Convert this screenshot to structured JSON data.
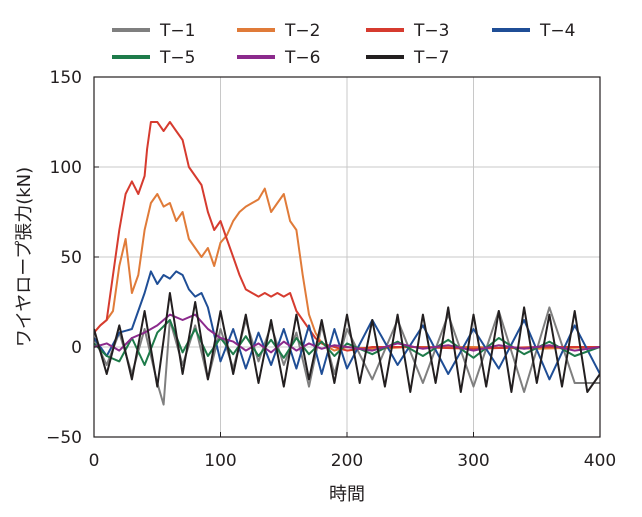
{
  "chart_data": {
    "type": "line",
    "title": "",
    "xlabel": "時間",
    "ylabel": "ワイヤロープ張力(kN)",
    "xlim": [
      0,
      400
    ],
    "ylim": [
      -50,
      150
    ],
    "xticks": [
      0,
      100,
      200,
      300,
      400
    ],
    "yticks": [
      -50,
      0,
      50,
      100,
      150
    ],
    "xtick_labels": [
      "0",
      "100",
      "200",
      "300",
      "400"
    ],
    "ytick_labels": [
      "−50",
      "0",
      "50",
      "100",
      "150"
    ],
    "grid": true,
    "legend_position": "top",
    "series": [
      {
        "name": "T−1",
        "color": "#7f7f7f",
        "x": [
          0,
          10,
          20,
          30,
          40,
          50,
          55,
          60,
          70,
          80,
          90,
          100,
          110,
          120,
          130,
          140,
          150,
          160,
          170,
          180,
          190,
          200,
          220,
          240,
          260,
          280,
          300,
          320,
          340,
          360,
          380,
          400
        ],
        "y": [
          5,
          -10,
          8,
          -15,
          10,
          -20,
          -32,
          15,
          -10,
          12,
          -18,
          10,
          -12,
          15,
          -8,
          12,
          -10,
          8,
          -22,
          12,
          -15,
          10,
          -18,
          15,
          -20,
          18,
          -22,
          20,
          -25,
          22,
          -20,
          -20
        ]
      },
      {
        "name": "T−2",
        "color": "#e07b39",
        "x": [
          0,
          5,
          10,
          15,
          20,
          25,
          30,
          35,
          40,
          45,
          50,
          55,
          60,
          65,
          70,
          75,
          80,
          85,
          90,
          95,
          100,
          105,
          110,
          115,
          120,
          125,
          130,
          135,
          140,
          145,
          150,
          155,
          160,
          165,
          170,
          175,
          180,
          190,
          200,
          220,
          250,
          300,
          350,
          400
        ],
        "y": [
          8,
          12,
          15,
          20,
          45,
          60,
          30,
          40,
          65,
          80,
          85,
          78,
          80,
          70,
          75,
          60,
          55,
          50,
          55,
          45,
          58,
          62,
          70,
          75,
          78,
          80,
          82,
          88,
          75,
          80,
          85,
          70,
          65,
          40,
          18,
          8,
          2,
          -2,
          0,
          -1,
          0,
          0,
          -1,
          0
        ]
      },
      {
        "name": "T−3",
        "color": "#d63b2f",
        "x": [
          0,
          5,
          10,
          15,
          20,
          25,
          30,
          35,
          40,
          42,
          45,
          50,
          55,
          60,
          65,
          70,
          75,
          80,
          85,
          90,
          95,
          100,
          105,
          110,
          115,
          120,
          125,
          130,
          135,
          140,
          145,
          150,
          155,
          160,
          165,
          170,
          175,
          180,
          190,
          200,
          220,
          250,
          300,
          350,
          400
        ],
        "y": [
          8,
          12,
          15,
          40,
          65,
          85,
          92,
          85,
          95,
          110,
          125,
          125,
          120,
          125,
          120,
          115,
          100,
          95,
          90,
          75,
          65,
          70,
          60,
          50,
          40,
          32,
          30,
          28,
          30,
          28,
          30,
          28,
          30,
          20,
          15,
          10,
          5,
          2,
          0,
          -2,
          0,
          0,
          -1,
          0,
          0
        ]
      },
      {
        "name": "T−4",
        "color": "#1f4e96",
        "x": [
          0,
          10,
          20,
          30,
          40,
          45,
          50,
          55,
          60,
          65,
          70,
          75,
          80,
          85,
          90,
          100,
          110,
          120,
          130,
          140,
          150,
          160,
          170,
          180,
          190,
          200,
          220,
          240,
          260,
          280,
          300,
          320,
          340,
          360,
          380,
          400
        ],
        "y": [
          5,
          -5,
          8,
          10,
          30,
          42,
          35,
          40,
          38,
          42,
          40,
          32,
          28,
          30,
          22,
          -8,
          10,
          -12,
          8,
          -10,
          10,
          -12,
          12,
          -15,
          10,
          -12,
          15,
          -10,
          12,
          -15,
          10,
          -12,
          15,
          -18,
          12,
          -15
        ]
      },
      {
        "name": "T−5",
        "color": "#1e7b4a",
        "x": [
          0,
          10,
          20,
          30,
          40,
          50,
          60,
          70,
          80,
          90,
          100,
          110,
          120,
          130,
          140,
          150,
          160,
          170,
          180,
          190,
          200,
          220,
          240,
          260,
          280,
          300,
          320,
          340,
          360,
          380,
          400
        ],
        "y": [
          2,
          -5,
          -8,
          5,
          -10,
          8,
          15,
          -3,
          10,
          -5,
          5,
          -4,
          6,
          -5,
          4,
          -6,
          5,
          -4,
          3,
          -5,
          2,
          -4,
          3,
          -5,
          4,
          -6,
          5,
          -4,
          3,
          -5,
          0
        ]
      },
      {
        "name": "T−6",
        "color": "#8b2a8c",
        "x": [
          0,
          10,
          20,
          30,
          40,
          50,
          60,
          70,
          80,
          90,
          100,
          110,
          120,
          130,
          140,
          150,
          160,
          170,
          180,
          190,
          200,
          220,
          240,
          260,
          280,
          300,
          320,
          340,
          360,
          380,
          400
        ],
        "y": [
          0,
          2,
          -2,
          5,
          8,
          12,
          18,
          15,
          18,
          10,
          5,
          3,
          -2,
          2,
          -3,
          3,
          -2,
          2,
          -1,
          1,
          0,
          -2,
          2,
          -1,
          1,
          -2,
          1,
          -1,
          1,
          -2,
          0
        ]
      },
      {
        "name": "T−7",
        "color": "#231f20",
        "x": [
          0,
          10,
          20,
          30,
          40,
          50,
          60,
          70,
          80,
          90,
          100,
          110,
          120,
          130,
          140,
          150,
          160,
          170,
          180,
          190,
          200,
          210,
          220,
          230,
          240,
          250,
          260,
          270,
          280,
          290,
          300,
          310,
          320,
          330,
          340,
          350,
          360,
          370,
          380,
          390,
          400
        ],
        "y": [
          10,
          -15,
          12,
          -18,
          20,
          -22,
          30,
          -15,
          25,
          -18,
          20,
          -15,
          18,
          -20,
          15,
          -22,
          18,
          -18,
          15,
          -20,
          18,
          -20,
          15,
          -22,
          18,
          -25,
          18,
          -20,
          22,
          -25,
          18,
          -22,
          20,
          -25,
          22,
          -20,
          18,
          -22,
          20,
          -25,
          -15
        ]
      }
    ]
  }
}
